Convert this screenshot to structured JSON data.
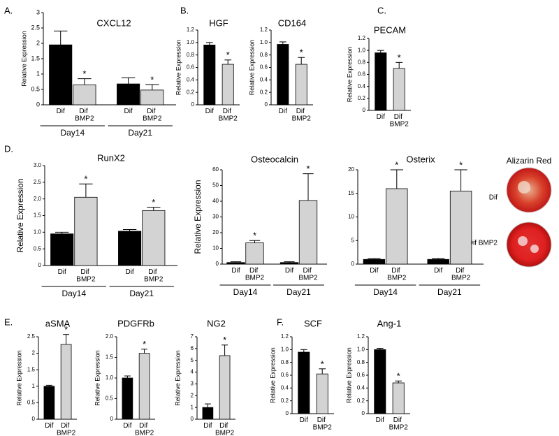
{
  "chart_data": [
    {
      "type": "bar",
      "panel": "A.",
      "title": "CXCL12",
      "ylabel": "Relative Expression",
      "categories": [
        "Dif",
        "Dif BMP2",
        "Dif",
        "Dif BMP2"
      ],
      "groups": [
        "Day14",
        "Day21"
      ],
      "values": [
        1.95,
        0.65,
        0.68,
        0.48
      ],
      "errors": [
        0.45,
        0.2,
        0.2,
        0.18
      ],
      "colors": [
        "#000000",
        "#d3d3d3",
        "#000000",
        "#d3d3d3"
      ],
      "significance": [
        null,
        "*",
        null,
        "*"
      ],
      "ylim": [
        0,
        3
      ],
      "yticks": [
        0,
        0.5,
        1,
        1.5,
        2,
        2.5,
        3
      ]
    },
    {
      "type": "bar",
      "panel": "B.",
      "title": "HGF",
      "ylabel": "Relative Expression",
      "categories": [
        "Dif",
        "Dif BMP2"
      ],
      "values": [
        0.96,
        0.65
      ],
      "errors": [
        0.04,
        0.07
      ],
      "colors": [
        "#000000",
        "#d3d3d3"
      ],
      "significance": [
        null,
        "*"
      ],
      "ylim": [
        0,
        1.2
      ],
      "yticks": [
        0,
        0.2,
        0.4,
        0.6,
        0.8,
        {
          "value": 1,
          "label": "1.0"
        },
        1.2
      ]
    },
    {
      "type": "bar",
      "title": "CD164",
      "ylabel": "Relative Expression",
      "categories": [
        "Dif",
        "Dif BMP2"
      ],
      "values": [
        0.97,
        0.65
      ],
      "errors": [
        0.04,
        0.11
      ],
      "colors": [
        "#000000",
        "#d3d3d3"
      ],
      "significance": [
        null,
        "*"
      ],
      "ylim": [
        0,
        1.2
      ],
      "yticks": [
        0,
        0.2,
        0.4,
        0.6,
        0.8,
        {
          "value": 1,
          "label": "1.0"
        },
        1.2
      ]
    },
    {
      "type": "bar",
      "panel": "C.",
      "title": "PECAM",
      "ylabel": "Relative Expression",
      "categories": [
        "Dif",
        "Dif BMP2"
      ],
      "values": [
        0.96,
        0.7
      ],
      "errors": [
        0.04,
        0.1
      ],
      "colors": [
        "#000000",
        "#d3d3d3"
      ],
      "significance": [
        null,
        "*"
      ],
      "ylim": [
        0,
        1.2
      ],
      "yticks": [
        0,
        0.2,
        0.4,
        0.6,
        0.8,
        {
          "value": 1,
          "label": "1.0"
        },
        1.2
      ]
    },
    {
      "type": "bar",
      "panel": "D.",
      "title": "RunX2",
      "ylabel": "Relative Expression",
      "categories": [
        "Dif",
        "Dif BMP2",
        "Dif",
        "Dif BMP2"
      ],
      "groups": [
        "Day14",
        "Day21"
      ],
      "values": [
        0.95,
        2.05,
        1.03,
        1.65
      ],
      "errors": [
        0.05,
        0.4,
        0.05,
        0.1
      ],
      "colors": [
        "#000000",
        "#d3d3d3",
        "#000000",
        "#d3d3d3"
      ],
      "significance": [
        null,
        "*",
        null,
        "*"
      ],
      "ylim": [
        0,
        3
      ],
      "yticks": [
        0,
        0.5,
        {
          "value": 1,
          "label": "1.0"
        },
        1.5,
        {
          "value": 2,
          "label": "2.0"
        },
        2.5,
        {
          "value": 3,
          "label": "3.0"
        }
      ]
    },
    {
      "type": "bar",
      "title": "Osteocalcin",
      "ylabel": "Relative Expression",
      "categories": [
        "Dif",
        "Dif BMP2",
        "Dif",
        "Dif BMP2"
      ],
      "groups": [
        "Day14",
        "Day21"
      ],
      "values": [
        1,
        13.5,
        1,
        40.5
      ],
      "errors": [
        0.5,
        1.5,
        0.5,
        17
      ],
      "colors": [
        "#000000",
        "#d3d3d3",
        "#000000",
        "#d3d3d3"
      ],
      "significance": [
        null,
        "*",
        null,
        "*"
      ],
      "ylim": [
        0,
        60
      ],
      "yticks": [
        0,
        10,
        20,
        30,
        40,
        50,
        60
      ]
    },
    {
      "type": "bar",
      "title": "Osterix",
      "categories": [
        "Dif",
        "Dif BMP2",
        "Dif",
        "Dif BMP2"
      ],
      "groups": [
        "Day14",
        "Day21"
      ],
      "values": [
        1,
        16,
        1,
        15.5
      ],
      "errors": [
        0.2,
        4,
        0.2,
        4.5
      ],
      "colors": [
        "#000000",
        "#d3d3d3",
        "#000000",
        "#d3d3d3"
      ],
      "significance": [
        null,
        "*",
        null,
        "*"
      ],
      "ylim": [
        0,
        20
      ],
      "yticks": [
        0,
        5,
        10,
        15,
        20
      ]
    },
    {
      "type": "bar",
      "panel": "E.",
      "title": "aSMA",
      "ylabel": "Relative Expression",
      "categories": [
        "Dif",
        "Dif BMP2"
      ],
      "values": [
        1,
        2.27
      ],
      "errors": [
        0.03,
        0.3
      ],
      "colors": [
        "#000000",
        "#d3d3d3"
      ],
      "significance": [
        null,
        "*"
      ],
      "ylim": [
        0,
        2.5
      ],
      "yticks": [
        0,
        0.5,
        1,
        1.5,
        2,
        2.5
      ]
    },
    {
      "type": "bar",
      "title": "PDGFRb",
      "ylabel": "Relative Expression",
      "categories": [
        "Dif",
        "Dif BMP2"
      ],
      "values": [
        1,
        1.6
      ],
      "errors": [
        0.05,
        0.1
      ],
      "colors": [
        "#000000",
        "#d3d3d3"
      ],
      "significance": [
        null,
        "*"
      ],
      "ylim": [
        0,
        2
      ],
      "yticks": [
        0,
        0.5,
        {
          "value": 1,
          "label": "1.0"
        },
        1.5,
        {
          "value": 2,
          "label": "2.0"
        }
      ]
    },
    {
      "type": "bar",
      "title": "NG2",
      "ylabel": "Relative Expression",
      "categories": [
        "Dif",
        "Dif BMP2"
      ],
      "values": [
        1,
        5.4
      ],
      "errors": [
        0.3,
        0.9
      ],
      "colors": [
        "#000000",
        "#d3d3d3"
      ],
      "significance": [
        null,
        "*"
      ],
      "ylim": [
        0,
        7
      ],
      "yticks": [
        0,
        1,
        2,
        3,
        4,
        5,
        6,
        7
      ]
    },
    {
      "type": "bar",
      "panel": "F.",
      "title": "SCF",
      "ylabel": "Relative Expression",
      "categories": [
        "Dif",
        "Dif BMP2"
      ],
      "values": [
        0.96,
        0.62
      ],
      "errors": [
        0.04,
        0.08
      ],
      "colors": [
        "#000000",
        "#d3d3d3"
      ],
      "significance": [
        null,
        "*"
      ],
      "ylim": [
        0,
        1.2
      ],
      "yticks": [
        0,
        0.2,
        0.4,
        0.6,
        0.8,
        {
          "value": 1,
          "label": "1.0"
        },
        1.2
      ]
    },
    {
      "type": "bar",
      "title": "Ang-1",
      "ylabel": "Relative Expression",
      "categories": [
        "Dif",
        "Dif BMP2"
      ],
      "values": [
        1,
        0.48
      ],
      "errors": [
        0.02,
        0.03
      ],
      "colors": [
        "#000000",
        "#d3d3d3"
      ],
      "significance": [
        null,
        "*"
      ],
      "ylim": [
        0,
        1.2
      ],
      "yticks": [
        0,
        0.2,
        0.4,
        0.6,
        0.8,
        {
          "value": 1,
          "label": "1.0"
        },
        1.2
      ]
    }
  ],
  "alizarin": {
    "title": "Alizarin Red",
    "labels": [
      "Dif",
      "Dif BMP2"
    ]
  }
}
